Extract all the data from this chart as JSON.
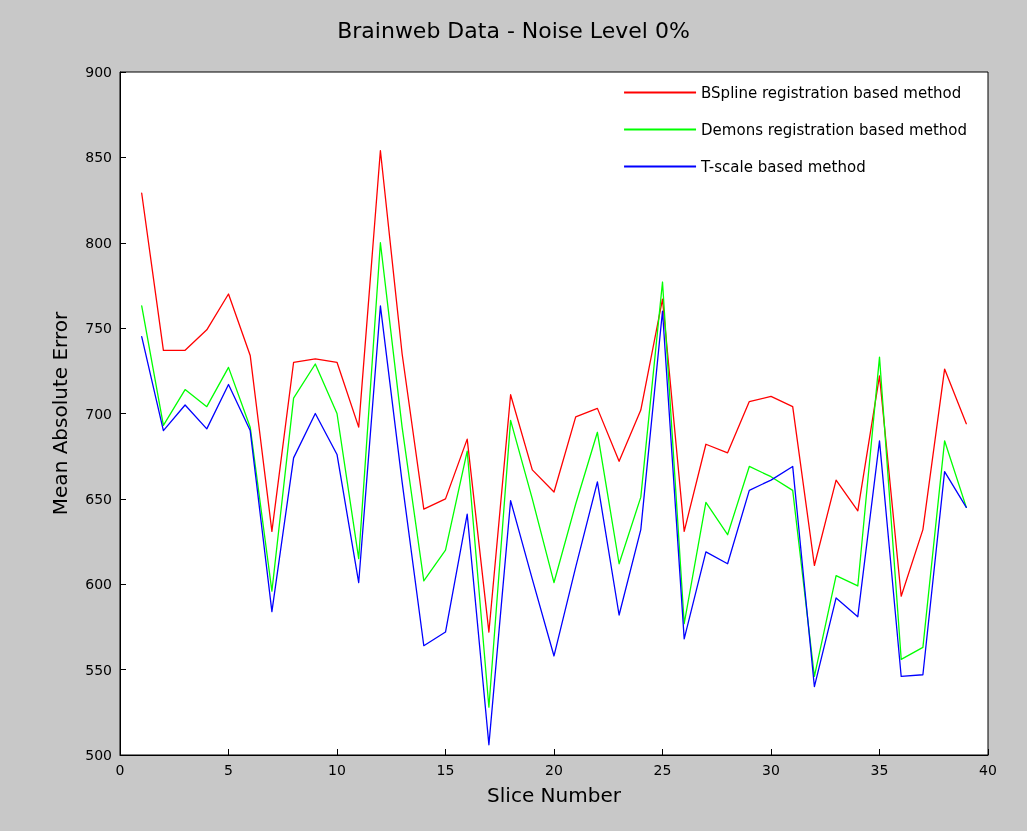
{
  "chart_data": {
    "type": "line",
    "title": "Brainweb Data - Noise Level 0%",
    "xlabel": "Slice Number",
    "ylabel": "Mean Absolute Error",
    "x": [
      1,
      2,
      3,
      4,
      5,
      6,
      7,
      8,
      9,
      10,
      11,
      12,
      13,
      14,
      15,
      16,
      17,
      18,
      19,
      20,
      21,
      22,
      23,
      24,
      25,
      26,
      27,
      28,
      29,
      30,
      31,
      32,
      33,
      34,
      35,
      36,
      37,
      38,
      39
    ],
    "series": [
      {
        "name": "BSpline registration based method",
        "color": "#ff0000",
        "values": [
          829,
          737,
          737,
          749,
          770,
          734,
          631,
          730,
          732,
          730,
          692,
          854,
          735,
          644,
          650,
          685,
          572,
          711,
          667,
          654,
          698,
          703,
          672,
          702,
          767,
          631,
          682,
          677,
          707,
          710,
          704,
          611,
          661,
          643,
          722,
          593,
          632,
          726,
          694
        ]
      },
      {
        "name": "Demons registration based method",
        "color": "#00ff00",
        "values": [
          763,
          693,
          714,
          704,
          727,
          692,
          596,
          709,
          729,
          700,
          615,
          800,
          692,
          602,
          620,
          678,
          528,
          696,
          650,
          601,
          647,
          689,
          612,
          651,
          777,
          577,
          648,
          629,
          669,
          663,
          655,
          546,
          605,
          599,
          733,
          556,
          563,
          684,
          645
        ]
      },
      {
        "name": "T-scale based method",
        "color": "#0000ff",
        "values": [
          745,
          690,
          705,
          691,
          717,
          690,
          584,
          674,
          700,
          676,
          601,
          763,
          660,
          564,
          572,
          641,
          506,
          649,
          603,
          558,
          610,
          660,
          582,
          632,
          760,
          568,
          619,
          612,
          655,
          661,
          669,
          540,
          592,
          581,
          684,
          546,
          547,
          666,
          645
        ]
      }
    ],
    "xlim": [
      0,
      40
    ],
    "xticks": [
      0,
      5,
      10,
      15,
      20,
      25,
      30,
      35,
      40
    ],
    "ylim": [
      500,
      900
    ],
    "yticks": [
      500,
      550,
      600,
      650,
      700,
      750,
      800,
      850,
      900
    ],
    "grid": false,
    "legend": "top right",
    "marker": "none",
    "line_style": "solid"
  }
}
